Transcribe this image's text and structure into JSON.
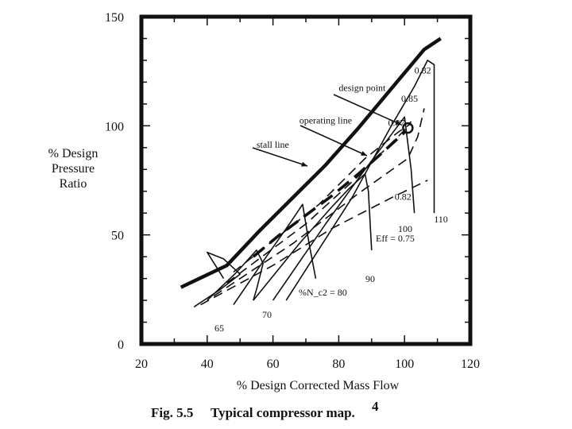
{
  "chart_data": {
    "type": "line",
    "title": "",
    "caption": {
      "number": "Fig. 5.5",
      "text": "Typical compressor map.",
      "superscript": "4"
    },
    "xlabel": "% Design Corrected Mass Flow",
    "ylabel_lines": [
      "% Design",
      "Pressure",
      "Ratio"
    ],
    "xlim": [
      20,
      120
    ],
    "ylim": [
      0,
      150
    ],
    "x_ticks": [
      "20",
      "40",
      "60",
      "80",
      "100",
      "120"
    ],
    "y_ticks": [
      "0",
      "50",
      "100",
      "150"
    ],
    "grid": false,
    "stall_line": {
      "name": "stall line",
      "x": [
        32,
        46,
        56,
        66,
        76,
        86,
        96,
        106,
        111
      ],
      "y": [
        26,
        36,
        52,
        67,
        82,
        99,
        117,
        135,
        140
      ]
    },
    "operating_line": {
      "name": "operating line",
      "x": [
        54,
        62,
        70,
        78,
        86,
        92,
        100
      ],
      "y": [
        40,
        50,
        59,
        68,
        78,
        86,
        97
      ]
    },
    "speed_lines": [
      {
        "label": "65",
        "x": [
          36,
          44,
          50,
          45,
          40,
          45
        ],
        "y": [
          17,
          25,
          32,
          39,
          42,
          30
        ]
      },
      {
        "label": "70",
        "x": [
          40,
          49,
          55,
          57,
          55,
          54
        ],
        "y": [
          20,
          33,
          43,
          37,
          25,
          20
        ]
      },
      {
        "label": "%N_c2 = 80",
        "x": [
          48,
          58,
          65,
          69,
          71,
          73
        ],
        "y": [
          18,
          40,
          55,
          64,
          46,
          30
        ]
      },
      {
        "label": "90",
        "x": [
          54,
          68,
          78,
          83,
          88,
          89,
          90
        ],
        "y": [
          20,
          46,
          63,
          71,
          78,
          70,
          43
        ]
      },
      {
        "label": "100",
        "x": [
          60,
          76,
          87,
          93,
          98,
          100,
          102,
          103
        ],
        "y": [
          20,
          55,
          78,
          90,
          100,
          104,
          80,
          60
        ]
      },
      {
        "label": "110",
        "x": [
          64,
          84,
          96,
          103,
          107,
          109,
          109
        ],
        "y": [
          20,
          67,
          100,
          118,
          130,
          128,
          60
        ]
      }
    ],
    "efficiency_contours": [
      {
        "label": "Eff = 0.75",
        "x": [
          38,
          60,
          78,
          96,
          107
        ],
        "y": [
          18,
          36,
          53,
          67,
          75
        ]
      },
      {
        "label": "0.82",
        "x": [
          42,
          66,
          86,
          101,
          104,
          106
        ],
        "y": [
          22,
          46,
          69,
          85,
          95,
          108
        ]
      },
      {
        "label": "0.85",
        "x": [
          46,
          70,
          86,
          96,
          100,
          102
        ],
        "y": [
          28,
          55,
          77,
          92,
          98,
          102
        ]
      },
      {
        "label": "0.87",
        "x": [
          48,
          74,
          88,
          98,
          102
        ],
        "y": [
          33,
          64,
          85,
          97,
          101
        ]
      }
    ],
    "design_point": {
      "label": "design point",
      "x": 101,
      "y": 99
    },
    "annotations": [
      {
        "text": "0.82",
        "x": 103,
        "y": 124
      },
      {
        "text": "0.85",
        "x": 99,
        "y": 111
      },
      {
        "text": "0.87",
        "x": 95,
        "y": 100
      },
      {
        "text": "0.82",
        "x": 97,
        "y": 66
      },
      {
        "text": "design point",
        "x": 80,
        "y": 116
      },
      {
        "text": "operating line",
        "x": 68,
        "y": 101
      },
      {
        "text": "stall line",
        "x": 55,
        "y": 90
      }
    ]
  }
}
